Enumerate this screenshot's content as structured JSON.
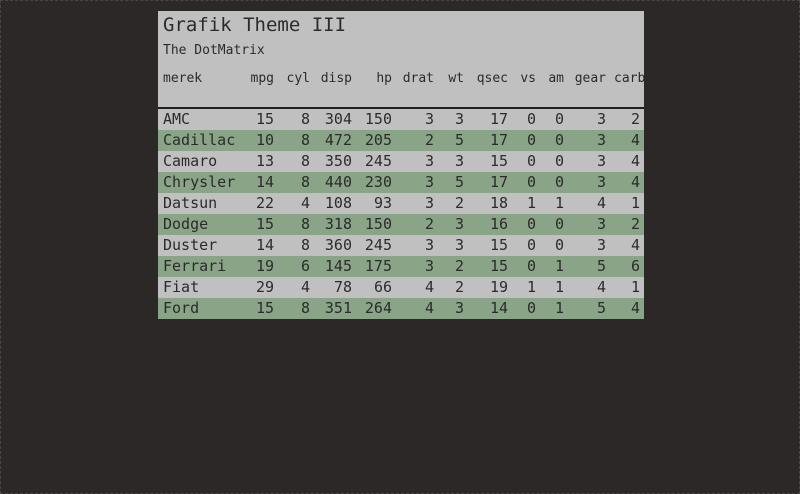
{
  "table": {
    "title": "Grafik Theme III",
    "subtitle": "The DotMatrix",
    "columns": [
      "merek",
      "mpg",
      "cyl",
      "disp",
      "hp",
      "drat",
      "wt",
      "qsec",
      "vs",
      "am",
      "gear",
      "carb"
    ],
    "rows": [
      [
        "AMC",
        "15",
        "8",
        "304",
        "150",
        "3",
        "3",
        "17",
        "0",
        "0",
        "3",
        "2"
      ],
      [
        "Cadillac",
        "10",
        "8",
        "472",
        "205",
        "2",
        "5",
        "17",
        "0",
        "0",
        "3",
        "4"
      ],
      [
        "Camaro",
        "13",
        "8",
        "350",
        "245",
        "3",
        "3",
        "15",
        "0",
        "0",
        "3",
        "4"
      ],
      [
        "Chrysler",
        "14",
        "8",
        "440",
        "230",
        "3",
        "5",
        "17",
        "0",
        "0",
        "3",
        "4"
      ],
      [
        "Datsun",
        "22",
        "4",
        "108",
        "93",
        "3",
        "2",
        "18",
        "1",
        "1",
        "4",
        "1"
      ],
      [
        "Dodge",
        "15",
        "8",
        "318",
        "150",
        "2",
        "3",
        "16",
        "0",
        "0",
        "3",
        "2"
      ],
      [
        "Duster",
        "14",
        "8",
        "360",
        "245",
        "3",
        "3",
        "15",
        "0",
        "0",
        "3",
        "4"
      ],
      [
        "Ferrari",
        "19",
        "6",
        "145",
        "175",
        "3",
        "2",
        "15",
        "0",
        "1",
        "5",
        "6"
      ],
      [
        "Fiat",
        "29",
        "4",
        "78",
        "66",
        "4",
        "2",
        "19",
        "1",
        "1",
        "4",
        "1"
      ],
      [
        "Ford",
        "15",
        "8",
        "351",
        "264",
        "4",
        "3",
        "14",
        "0",
        "1",
        "5",
        "4"
      ]
    ]
  },
  "colors": {
    "page_background": "#2b2827",
    "table_background": "#c0c0c0",
    "striped_row": "#8aa487",
    "text": "#2b2b2b"
  }
}
